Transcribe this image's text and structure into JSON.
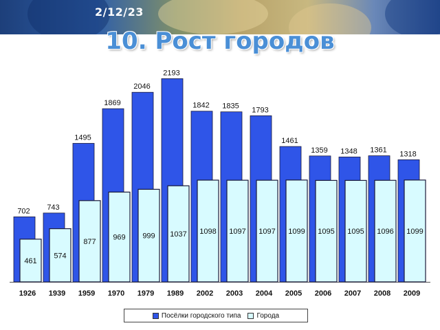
{
  "slide": {
    "date": "2/12/23",
    "title": "10. Рост городов"
  },
  "colors": {
    "series_a": "#2f55e8",
    "series_b": "#d8fbff",
    "outline": "#1a1a3a"
  },
  "chart_data": {
    "type": "bar",
    "categories": [
      "1926",
      "1939",
      "1959",
      "1970",
      "1979",
      "1989",
      "2002",
      "2003",
      "2004",
      "2005",
      "2006",
      "2007",
      "2008",
      "2009"
    ],
    "series": [
      {
        "name": "Посёлки городского типа",
        "values": [
          702,
          743,
          1495,
          1869,
          2046,
          2193,
          1842,
          1835,
          1793,
          1461,
          1359,
          1348,
          1361,
          1318
        ]
      },
      {
        "name": "Города",
        "values": [
          461,
          574,
          877,
          969,
          999,
          1037,
          1098,
          1097,
          1097,
          1099,
          1095,
          1095,
          1096,
          1099
        ]
      }
    ],
    "ylim": [
      0,
      2300
    ],
    "grid": false,
    "legend": "bottom"
  }
}
